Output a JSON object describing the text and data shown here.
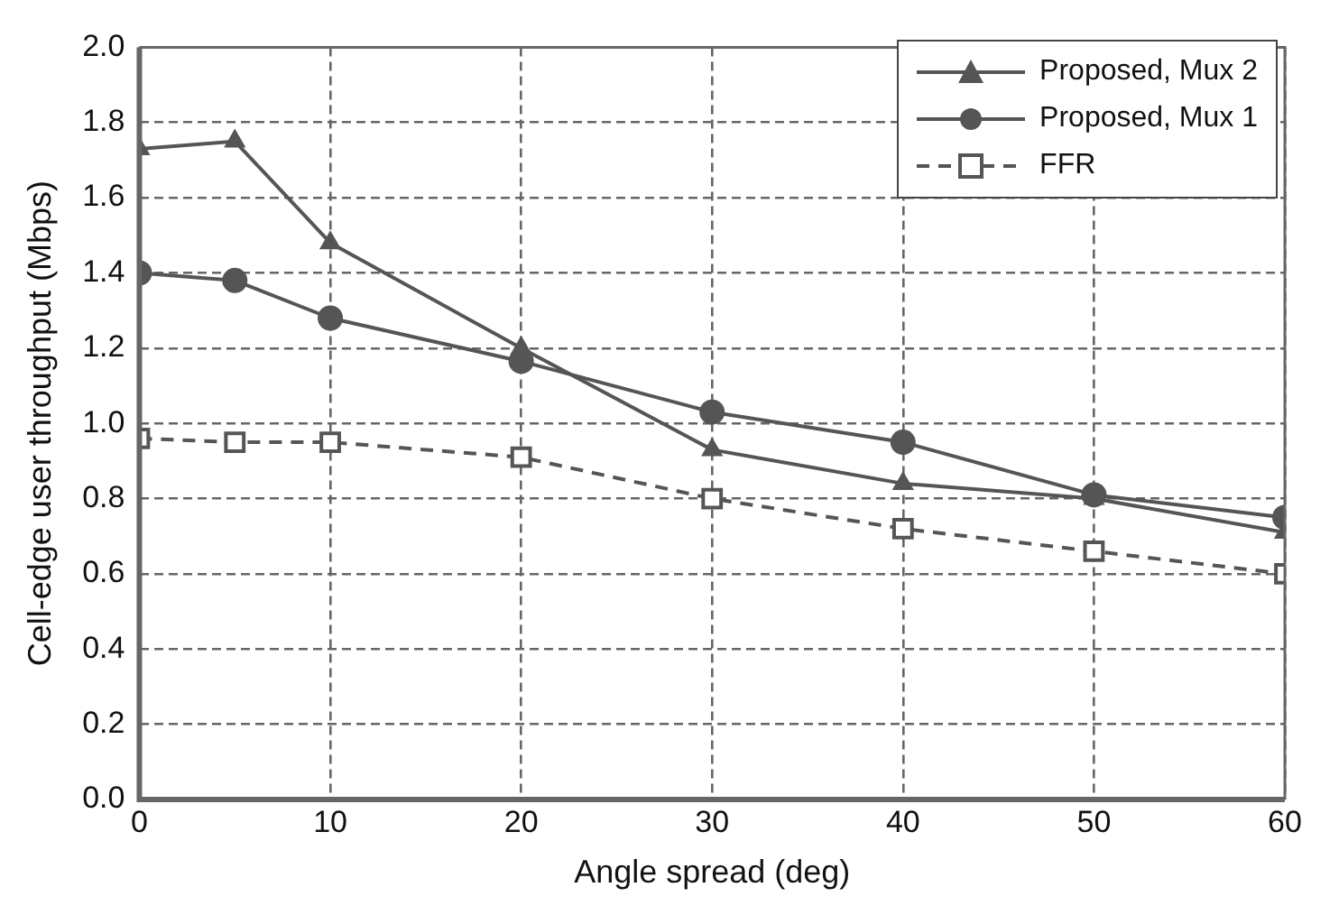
{
  "chart_data": {
    "type": "line",
    "xlabel": "Angle spread (deg)",
    "ylabel": "Cell-edge user throughput (Mbps)",
    "x": [
      0,
      5,
      10,
      20,
      30,
      40,
      50,
      60
    ],
    "xlim": [
      0,
      60
    ],
    "xticks": [
      0,
      10,
      20,
      30,
      40,
      50,
      60
    ],
    "ylim": [
      0,
      2
    ],
    "yticks": [
      {
        "value": 0,
        "label": "0.0"
      },
      {
        "value": 0.2,
        "label": "0.2"
      },
      {
        "value": 0.4,
        "label": "0.4"
      },
      {
        "value": 0.6,
        "label": "0.6"
      },
      {
        "value": 0.8,
        "label": "0.8"
      },
      {
        "value": 1,
        "label": "1.0"
      },
      {
        "value": 1.2,
        "label": "1.2"
      },
      {
        "value": 1.4,
        "label": "1.4"
      },
      {
        "value": 1.6,
        "label": "1.6"
      },
      {
        "value": 1.8,
        "label": "1.8"
      },
      {
        "value": 2,
        "label": "2.0"
      }
    ],
    "grid": true,
    "legend": "top right",
    "series": [
      {
        "name": "Proposed, Mux 2",
        "color": "#555555",
        "marker": "triangle",
        "line_style": "solid",
        "values": [
          1.73,
          1.75,
          1.48,
          1.2,
          0.93,
          0.84,
          0.8,
          0.71
        ]
      },
      {
        "name": "Proposed, Mux 1",
        "color": "#555555",
        "marker": "circle",
        "line_style": "solid",
        "values": [
          1.4,
          1.38,
          1.28,
          1.165,
          1.03,
          0.95,
          0.81,
          0.75
        ]
      },
      {
        "name": "FFR",
        "color": "#555555",
        "marker": "square",
        "line_style": "dashed",
        "values": [
          0.96,
          0.95,
          0.95,
          0.91,
          0.8,
          0.72,
          0.66,
          0.6
        ]
      }
    ]
  }
}
